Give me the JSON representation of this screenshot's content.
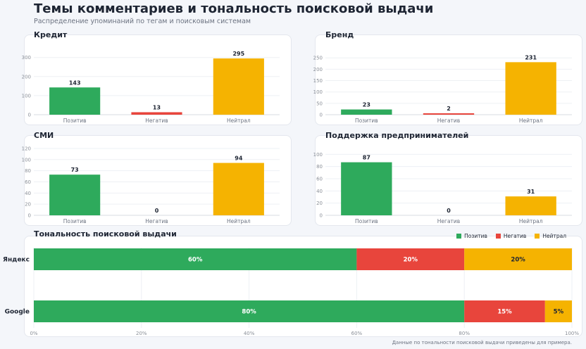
{
  "header": {
    "title": "Темы комментариев и тональность поисковой выдачи",
    "subtitle": "Распределение упоминаний по тегам и поисковым системам"
  },
  "colors": {
    "positive": "#2eaa5c",
    "negative": "#e8453c",
    "neutral": "#f5b301"
  },
  "chart_data": [
    {
      "type": "bar",
      "title": "Кредит",
      "categories": [
        "Позитив",
        "Негатив",
        "Нейтрал"
      ],
      "values": [
        143,
        13,
        295
      ],
      "data_labels": [
        "143",
        "13",
        "295"
      ],
      "ylim": [
        0,
        310
      ],
      "yticks": [
        0,
        100,
        200,
        300
      ],
      "ytick_labels": [
        "0",
        "100",
        "200",
        "300"
      ],
      "grid": true
    },
    {
      "type": "bar",
      "title": "Бренд",
      "categories": [
        "Позитив",
        "Негатив",
        "Нейтрал"
      ],
      "values": [
        23,
        2,
        231
      ],
      "data_labels": [
        "23",
        "2",
        "231"
      ],
      "ylim": [
        0,
        260
      ],
      "yticks": [
        0,
        50,
        100,
        150,
        200,
        250
      ],
      "ytick_labels": [
        "0",
        "50",
        "100",
        "150",
        "200",
        "250"
      ],
      "grid": true
    },
    {
      "type": "bar",
      "title": "СМИ",
      "categories": [
        "Позитив",
        "Негатив",
        "Нейтрал"
      ],
      "values": [
        73,
        0,
        94
      ],
      "data_labels": [
        "73",
        "0",
        "94"
      ],
      "ylim": [
        0,
        125
      ],
      "yticks": [
        0,
        20,
        40,
        60,
        80,
        100,
        120
      ],
      "ytick_labels": [
        "0",
        "20",
        "40",
        "60",
        "80",
        "100",
        "120"
      ],
      "grid": true
    },
    {
      "type": "bar",
      "title": "Поддержка предпринимателей",
      "categories": [
        "Позитив",
        "Негатив",
        "Нейтрал"
      ],
      "values": [
        87,
        0,
        31
      ],
      "data_labels": [
        "87",
        "0",
        "31"
      ],
      "ylim": [
        0,
        105
      ],
      "yticks": [
        0,
        20,
        40,
        60,
        80,
        100
      ],
      "ytick_labels": [
        "0",
        "20",
        "40",
        "60",
        "80",
        "100"
      ],
      "grid": true
    },
    {
      "type": "bar",
      "orientation": "horizontal",
      "stacked": true,
      "title": "Тональность поисковой выдачи",
      "categories": [
        "Яндекс",
        "Google"
      ],
      "series": [
        {
          "name": "Позитив",
          "values": [
            60,
            80
          ],
          "labels": [
            "60%",
            "80%"
          ]
        },
        {
          "name": "Негатив",
          "values": [
            20,
            15
          ],
          "labels": [
            "20%",
            "15%"
          ]
        },
        {
          "name": "Нейтрал",
          "values": [
            20,
            5
          ],
          "labels": [
            "20%",
            "5%"
          ]
        }
      ],
      "xlim": [
        0,
        100
      ],
      "xticks": [
        0,
        20,
        40,
        60,
        80,
        100
      ],
      "xtick_labels": [
        "0%",
        "20%",
        "40%",
        "60%",
        "80%",
        "100%"
      ],
      "legend": "top-right",
      "grid": true
    }
  ],
  "footnote": "Данные по тональности поисковой выдачи приведены для примера."
}
